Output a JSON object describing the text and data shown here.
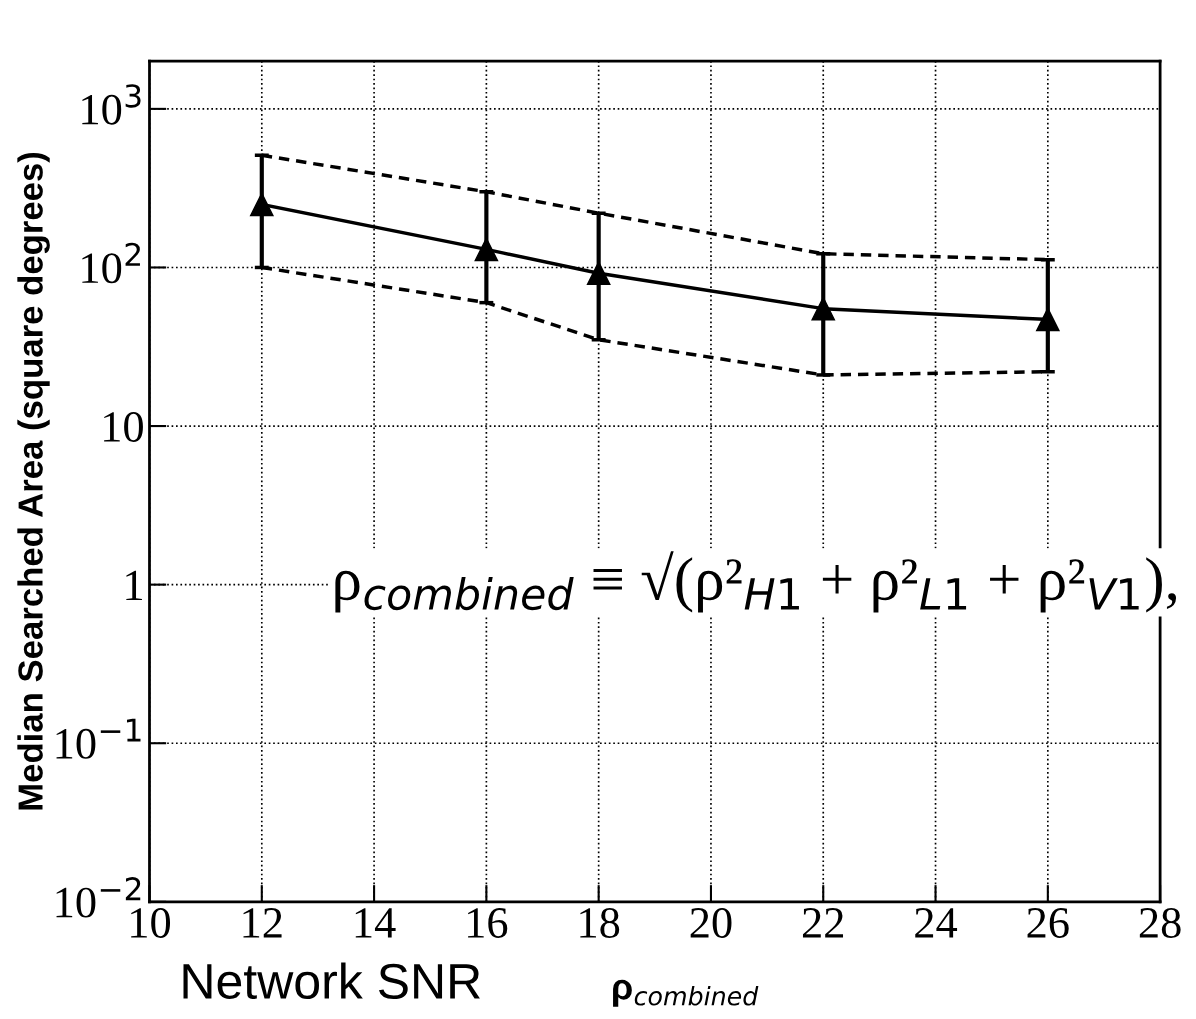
{
  "chart_data": {
    "type": "line",
    "ylabel": "Median Searched Area (square degrees)",
    "xlabel": "ρ$_{combined}$",
    "x": [
      12,
      16,
      18,
      22,
      26
    ],
    "series": [
      {
        "color": "#000000",
        "values": [
          250,
          130,
          92,
          55,
          47
        ],
        "errors": [
          [
            100,
            510
          ],
          [
            60,
            300
          ],
          [
            35,
            220
          ],
          [
            21,
            122
          ],
          [
            22,
            112
          ]
        ],
        "marker": "triangle",
        "line_style": "solid"
      },
      {
        "color": "#000000",
        "values": [
          510,
          300,
          220,
          122,
          112
        ],
        "marker": "none",
        "line_style": "dashed"
      },
      {
        "color": "#000000",
        "values": [
          100,
          60,
          35,
          21,
          22
        ],
        "marker": "none",
        "line_style": "dashed"
      }
    ],
    "log": "y",
    "xlim": [
      10,
      28
    ],
    "xticks": [
      10,
      12,
      14,
      16,
      18,
      20,
      22,
      24,
      26,
      28
    ],
    "ylim": [
      0.01,
      2000
    ],
    "yticks": [
      {
        "value": 0.01,
        "label": "10$^{−2}$"
      },
      {
        "value": 0.1,
        "label": "10$^{−1}$"
      },
      1,
      10,
      {
        "value": 100,
        "label": "10$^{2}$"
      },
      {
        "value": 1000,
        "label": "10$^{3}$"
      }
    ],
    "grid": true,
    "annotations": [
      "Network SNR",
      "ρ$_{combined}$ ≡ √(ρ²$_{H1}$ + ρ²$_{L1}$ + ρ²$_{V1}$),"
    ]
  }
}
